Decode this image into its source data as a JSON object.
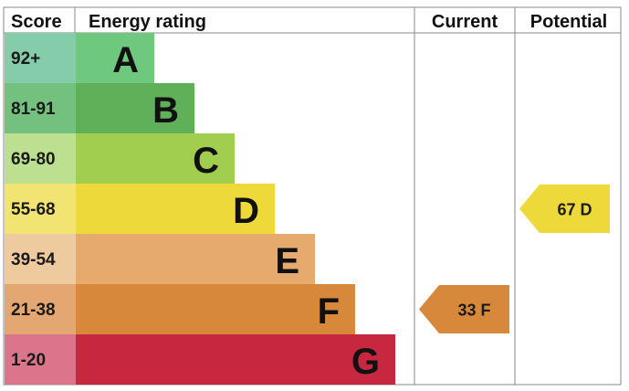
{
  "chart_data": {
    "type": "table",
    "headers": {
      "score": "Score",
      "energy_rating": "Energy rating",
      "current": "Current",
      "potential": "Potential"
    },
    "bands": [
      {
        "score": "92+",
        "letter": "A",
        "color": "#6ec97f",
        "score_bg": "#84ccaa"
      },
      {
        "score": "81-91",
        "letter": "B",
        "color": "#5fb059",
        "score_bg": "#74c07e"
      },
      {
        "score": "69-80",
        "letter": "C",
        "color": "#a1ce4e",
        "score_bg": "#bde090"
      },
      {
        "score": "55-68",
        "letter": "D",
        "color": "#eed93b",
        "score_bg": "#f2e472"
      },
      {
        "score": "39-54",
        "letter": "E",
        "color": "#e6ab6c",
        "score_bg": "#eecb9e"
      },
      {
        "score": "21-38",
        "letter": "F",
        "color": "#d8883a",
        "score_bg": "#e4a771"
      },
      {
        "score": "1-20",
        "letter": "G",
        "color": "#c8283f",
        "score_bg": "#da758c"
      }
    ],
    "current": {
      "value": 33,
      "letter": "F",
      "label": "33  F",
      "color": "#d8883a"
    },
    "potential": {
      "value": 67,
      "letter": "D",
      "label": "67  D",
      "color": "#eed93b"
    }
  }
}
